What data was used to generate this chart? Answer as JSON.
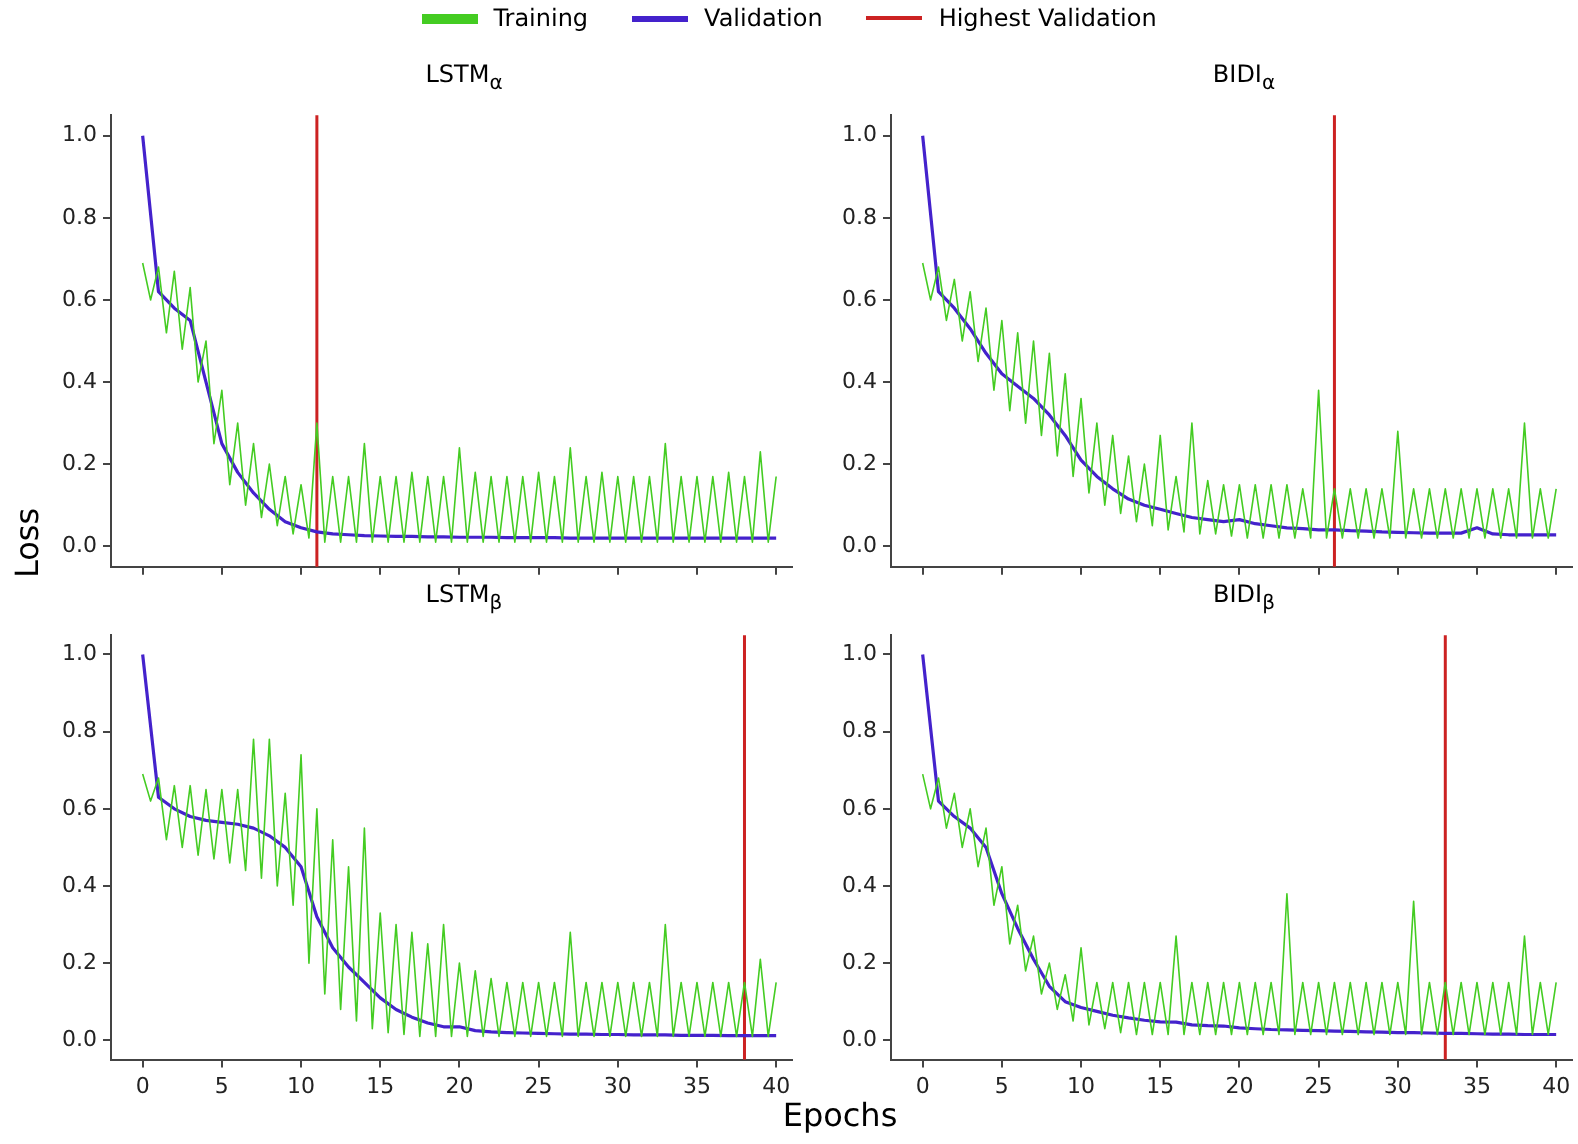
{
  "chart_data": [
    {
      "type": "line",
      "title": "LSTM$_{α}$",
      "ylabel": "Loss",
      "legend": "top",
      "tick_labels": "y",
      "grid": false,
      "marker": "none",
      "line_style": "solid",
      "xlim": [
        -2,
        41
      ],
      "ylim": [
        -0.05,
        1.05
      ],
      "xticks": [
        0,
        5,
        10,
        15,
        20,
        25,
        30,
        35,
        40
      ],
      "yticks": [
        {
          "value": 0,
          "label": "0.0"
        },
        {
          "value": 0.2,
          "label": "0.2"
        },
        {
          "value": 0.4,
          "label": "0.4"
        },
        {
          "value": 0.6,
          "label": "0.6"
        },
        {
          "value": 0.8,
          "label": "0.8"
        },
        {
          "value": 1,
          "label": "1.0"
        }
      ],
      "x": [
        0,
        0.5,
        1,
        1.5,
        2,
        2.5,
        3,
        3.5,
        4,
        4.5,
        5,
        5.5,
        6,
        6.5,
        7,
        7.5,
        8,
        8.5,
        9,
        9.5,
        10,
        10.5,
        11,
        11.5,
        12,
        12.5,
        13,
        13.5,
        14,
        14.5,
        15,
        15.5,
        16,
        16.5,
        17,
        17.5,
        18,
        18.5,
        19,
        19.5,
        20,
        20.5,
        21,
        21.5,
        22,
        22.5,
        23,
        23.5,
        24,
        24.5,
        25,
        25.5,
        26,
        26.5,
        27,
        27.5,
        28,
        28.5,
        29,
        29.5,
        30,
        30.5,
        31,
        31.5,
        32,
        32.5,
        33,
        33.5,
        34,
        34.5,
        35,
        35.5,
        36,
        36.5,
        37,
        37.5,
        38,
        38.5,
        39,
        39.5,
        40
      ],
      "series": [
        {
          "name": "Training",
          "color": "#44cc22",
          "values": [
            0.69,
            0.6,
            0.68,
            0.52,
            0.67,
            0.48,
            0.63,
            0.4,
            0.5,
            0.25,
            0.38,
            0.15,
            0.3,
            0.1,
            0.25,
            0.07,
            0.2,
            0.05,
            0.17,
            0.03,
            0.15,
            0.02,
            0.3,
            0.01,
            0.17,
            0.01,
            0.17,
            0.01,
            0.25,
            0.01,
            0.17,
            0.01,
            0.17,
            0.01,
            0.18,
            0.01,
            0.17,
            0.01,
            0.17,
            0.01,
            0.24,
            0.01,
            0.18,
            0.01,
            0.17,
            0.01,
            0.17,
            0.01,
            0.17,
            0.01,
            0.18,
            0.01,
            0.17,
            0.01,
            0.24,
            0.01,
            0.17,
            0.01,
            0.18,
            0.01,
            0.17,
            0.01,
            0.17,
            0.01,
            0.17,
            0.01,
            0.25,
            0.01,
            0.17,
            0.01,
            0.17,
            0.01,
            0.17,
            0.01,
            0.18,
            0.01,
            0.17,
            0.01,
            0.23,
            0.01,
            0.17
          ]
        },
        {
          "name": "Validation",
          "color": "#4422cc",
          "x": [
            0,
            1,
            2,
            3,
            4,
            5,
            6,
            7,
            8,
            9,
            10,
            11,
            12,
            13,
            14,
            15,
            16,
            17,
            18,
            19,
            20,
            21,
            22,
            23,
            24,
            25,
            26,
            27,
            28,
            29,
            30,
            31,
            32,
            33,
            34,
            35,
            36,
            37,
            38,
            39,
            40
          ],
          "values": [
            1.0,
            0.62,
            0.58,
            0.55,
            0.4,
            0.25,
            0.18,
            0.13,
            0.09,
            0.06,
            0.045,
            0.035,
            0.03,
            0.028,
            0.026,
            0.025,
            0.024,
            0.024,
            0.023,
            0.023,
            0.022,
            0.022,
            0.022,
            0.021,
            0.021,
            0.021,
            0.021,
            0.02,
            0.02,
            0.02,
            0.02,
            0.02,
            0.02,
            0.02,
            0.02,
            0.02,
            0.02,
            0.02,
            0.02,
            0.02,
            0.02
          ]
        }
      ],
      "ref_lines": [
        {
          "axis": "x",
          "value": 11,
          "label": "Highest Validation",
          "color": "#cc2222"
        }
      ]
    },
    {
      "type": "line",
      "title": "BIDI$_{α}$",
      "tick_labels": "y",
      "grid": false,
      "marker": "none",
      "line_style": "solid",
      "xlim": [
        -2,
        41
      ],
      "ylim": [
        -0.05,
        1.05
      ],
      "xticks": [
        0,
        5,
        10,
        15,
        20,
        25,
        30,
        35,
        40
      ],
      "yticks": [
        {
          "value": 0,
          "label": "0.0"
        },
        {
          "value": 0.2,
          "label": "0.2"
        },
        {
          "value": 0.4,
          "label": "0.4"
        },
        {
          "value": 0.6,
          "label": "0.6"
        },
        {
          "value": 0.8,
          "label": "0.8"
        },
        {
          "value": 1,
          "label": "1.0"
        }
      ],
      "x": [
        0,
        0.5,
        1,
        1.5,
        2,
        2.5,
        3,
        3.5,
        4,
        4.5,
        5,
        5.5,
        6,
        6.5,
        7,
        7.5,
        8,
        8.5,
        9,
        9.5,
        10,
        10.5,
        11,
        11.5,
        12,
        12.5,
        13,
        13.5,
        14,
        14.5,
        15,
        15.5,
        16,
        16.5,
        17,
        17.5,
        18,
        18.5,
        19,
        19.5,
        20,
        20.5,
        21,
        21.5,
        22,
        22.5,
        23,
        23.5,
        24,
        24.5,
        25,
        25.5,
        26,
        26.5,
        27,
        27.5,
        28,
        28.5,
        29,
        29.5,
        30,
        30.5,
        31,
        31.5,
        32,
        32.5,
        33,
        33.5,
        34,
        34.5,
        35,
        35.5,
        36,
        36.5,
        37,
        37.5,
        38,
        38.5,
        39,
        39.5,
        40
      ],
      "series": [
        {
          "color": "#44cc22",
          "values": [
            0.69,
            0.6,
            0.68,
            0.55,
            0.65,
            0.5,
            0.62,
            0.45,
            0.58,
            0.38,
            0.55,
            0.33,
            0.52,
            0.3,
            0.5,
            0.27,
            0.47,
            0.22,
            0.42,
            0.17,
            0.36,
            0.13,
            0.3,
            0.1,
            0.27,
            0.08,
            0.22,
            0.06,
            0.2,
            0.05,
            0.27,
            0.04,
            0.17,
            0.035,
            0.3,
            0.03,
            0.16,
            0.03,
            0.15,
            0.025,
            0.15,
            0.02,
            0.15,
            0.02,
            0.15,
            0.02,
            0.15,
            0.02,
            0.14,
            0.02,
            0.38,
            0.02,
            0.14,
            0.02,
            0.14,
            0.02,
            0.14,
            0.02,
            0.14,
            0.02,
            0.28,
            0.02,
            0.14,
            0.02,
            0.14,
            0.02,
            0.14,
            0.02,
            0.14,
            0.02,
            0.14,
            0.02,
            0.14,
            0.02,
            0.14,
            0.02,
            0.3,
            0.02,
            0.14,
            0.02,
            0.14
          ]
        },
        {
          "color": "#4422cc",
          "x": [
            0,
            1,
            2,
            3,
            4,
            5,
            6,
            7,
            8,
            9,
            10,
            11,
            12,
            13,
            14,
            15,
            16,
            17,
            18,
            19,
            20,
            21,
            22,
            23,
            24,
            25,
            26,
            27,
            28,
            29,
            30,
            31,
            32,
            33,
            34,
            35,
            36,
            37,
            38,
            39,
            40
          ],
          "values": [
            1.0,
            0.62,
            0.58,
            0.53,
            0.47,
            0.42,
            0.39,
            0.36,
            0.32,
            0.27,
            0.21,
            0.17,
            0.14,
            0.115,
            0.1,
            0.09,
            0.08,
            0.07,
            0.065,
            0.06,
            0.065,
            0.055,
            0.05,
            0.045,
            0.043,
            0.04,
            0.04,
            0.038,
            0.037,
            0.035,
            0.034,
            0.033,
            0.032,
            0.032,
            0.032,
            0.045,
            0.03,
            0.028,
            0.028,
            0.028,
            0.028
          ]
        }
      ],
      "ref_lines": [
        {
          "axis": "x",
          "value": 26,
          "color": "#cc2222"
        }
      ]
    },
    {
      "type": "line",
      "title": "LSTM$_{β}$",
      "tick_labels": true,
      "grid": false,
      "marker": "none",
      "line_style": "solid",
      "xlim": [
        -2,
        41
      ],
      "ylim": [
        -0.05,
        1.05
      ],
      "xticks": [
        0,
        5,
        10,
        15,
        20,
        25,
        30,
        35,
        40
      ],
      "yticks": [
        {
          "value": 0,
          "label": "0.0"
        },
        {
          "value": 0.2,
          "label": "0.2"
        },
        {
          "value": 0.4,
          "label": "0.4"
        },
        {
          "value": 0.6,
          "label": "0.6"
        },
        {
          "value": 0.8,
          "label": "0.8"
        },
        {
          "value": 1,
          "label": "1.0"
        }
      ],
      "x": [
        0,
        0.5,
        1,
        1.5,
        2,
        2.5,
        3,
        3.5,
        4,
        4.5,
        5,
        5.5,
        6,
        6.5,
        7,
        7.5,
        8,
        8.5,
        9,
        9.5,
        10,
        10.5,
        11,
        11.5,
        12,
        12.5,
        13,
        13.5,
        14,
        14.5,
        15,
        15.5,
        16,
        16.5,
        17,
        17.5,
        18,
        18.5,
        19,
        19.5,
        20,
        20.5,
        21,
        21.5,
        22,
        22.5,
        23,
        23.5,
        24,
        24.5,
        25,
        25.5,
        26,
        26.5,
        27,
        27.5,
        28,
        28.5,
        29,
        29.5,
        30,
        30.5,
        31,
        31.5,
        32,
        32.5,
        33,
        33.5,
        34,
        34.5,
        35,
        35.5,
        36,
        36.5,
        37,
        37.5,
        38,
        38.5,
        39,
        39.5,
        40
      ],
      "series": [
        {
          "color": "#44cc22",
          "values": [
            0.69,
            0.62,
            0.68,
            0.52,
            0.66,
            0.5,
            0.66,
            0.48,
            0.65,
            0.47,
            0.65,
            0.46,
            0.65,
            0.44,
            0.78,
            0.42,
            0.78,
            0.4,
            0.64,
            0.35,
            0.74,
            0.2,
            0.6,
            0.12,
            0.52,
            0.08,
            0.45,
            0.05,
            0.55,
            0.03,
            0.33,
            0.02,
            0.3,
            0.015,
            0.28,
            0.01,
            0.25,
            0.01,
            0.3,
            0.01,
            0.2,
            0.01,
            0.18,
            0.01,
            0.16,
            0.01,
            0.15,
            0.01,
            0.15,
            0.01,
            0.15,
            0.01,
            0.15,
            0.01,
            0.28,
            0.01,
            0.15,
            0.01,
            0.15,
            0.01,
            0.15,
            0.01,
            0.15,
            0.01,
            0.15,
            0.01,
            0.3,
            0.01,
            0.15,
            0.01,
            0.15,
            0.01,
            0.15,
            0.01,
            0.15,
            0.01,
            0.15,
            0.01,
            0.21,
            0.01,
            0.15
          ]
        },
        {
          "color": "#4422cc",
          "x": [
            0,
            1,
            2,
            3,
            4,
            5,
            6,
            7,
            8,
            9,
            10,
            11,
            12,
            13,
            14,
            15,
            16,
            17,
            18,
            19,
            20,
            21,
            22,
            23,
            24,
            25,
            26,
            27,
            28,
            29,
            30,
            31,
            32,
            33,
            34,
            35,
            36,
            37,
            38,
            39,
            40
          ],
          "values": [
            1.0,
            0.63,
            0.6,
            0.58,
            0.57,
            0.565,
            0.56,
            0.55,
            0.53,
            0.5,
            0.45,
            0.32,
            0.24,
            0.19,
            0.15,
            0.11,
            0.08,
            0.06,
            0.045,
            0.035,
            0.035,
            0.025,
            0.022,
            0.02,
            0.019,
            0.018,
            0.017,
            0.016,
            0.016,
            0.015,
            0.015,
            0.014,
            0.014,
            0.014,
            0.013,
            0.013,
            0.013,
            0.012,
            0.012,
            0.012,
            0.012
          ]
        }
      ],
      "ref_lines": [
        {
          "axis": "x",
          "value": 38,
          "color": "#cc2222"
        }
      ]
    },
    {
      "type": "line",
      "title": "BIDI$_{β}$",
      "xlabel": "Epochs",
      "tick_labels": true,
      "grid": false,
      "marker": "none",
      "line_style": "solid",
      "xlim": [
        -2,
        41
      ],
      "ylim": [
        -0.05,
        1.05
      ],
      "xticks": [
        0,
        5,
        10,
        15,
        20,
        25,
        30,
        35,
        40
      ],
      "yticks": [
        {
          "value": 0,
          "label": "0.0"
        },
        {
          "value": 0.2,
          "label": "0.2"
        },
        {
          "value": 0.4,
          "label": "0.4"
        },
        {
          "value": 0.6,
          "label": "0.6"
        },
        {
          "value": 0.8,
          "label": "0.8"
        },
        {
          "value": 1,
          "label": "1.0"
        }
      ],
      "x": [
        0,
        0.5,
        1,
        1.5,
        2,
        2.5,
        3,
        3.5,
        4,
        4.5,
        5,
        5.5,
        6,
        6.5,
        7,
        7.5,
        8,
        8.5,
        9,
        9.5,
        10,
        10.5,
        11,
        11.5,
        12,
        12.5,
        13,
        13.5,
        14,
        14.5,
        15,
        15.5,
        16,
        16.5,
        17,
        17.5,
        18,
        18.5,
        19,
        19.5,
        20,
        20.5,
        21,
        21.5,
        22,
        22.5,
        23,
        23.5,
        24,
        24.5,
        25,
        25.5,
        26,
        26.5,
        27,
        27.5,
        28,
        28.5,
        29,
        29.5,
        30,
        30.5,
        31,
        31.5,
        32,
        32.5,
        33,
        33.5,
        34,
        34.5,
        35,
        35.5,
        36,
        36.5,
        37,
        37.5,
        38,
        38.5,
        39,
        39.5,
        40
      ],
      "series": [
        {
          "color": "#44cc22",
          "values": [
            0.69,
            0.6,
            0.68,
            0.55,
            0.64,
            0.5,
            0.6,
            0.45,
            0.55,
            0.35,
            0.45,
            0.25,
            0.35,
            0.18,
            0.27,
            0.12,
            0.2,
            0.08,
            0.17,
            0.05,
            0.24,
            0.04,
            0.15,
            0.03,
            0.15,
            0.02,
            0.15,
            0.015,
            0.15,
            0.015,
            0.15,
            0.015,
            0.27,
            0.015,
            0.15,
            0.015,
            0.15,
            0.015,
            0.15,
            0.015,
            0.15,
            0.015,
            0.15,
            0.015,
            0.15,
            0.015,
            0.38,
            0.015,
            0.15,
            0.015,
            0.15,
            0.015,
            0.15,
            0.015,
            0.15,
            0.015,
            0.15,
            0.015,
            0.15,
            0.015,
            0.15,
            0.015,
            0.36,
            0.015,
            0.15,
            0.015,
            0.15,
            0.015,
            0.15,
            0.015,
            0.15,
            0.015,
            0.15,
            0.015,
            0.15,
            0.015,
            0.27,
            0.015,
            0.15,
            0.015,
            0.15
          ]
        },
        {
          "color": "#4422cc",
          "x": [
            0,
            1,
            2,
            3,
            4,
            5,
            6,
            7,
            8,
            9,
            10,
            11,
            12,
            13,
            14,
            15,
            16,
            17,
            18,
            19,
            20,
            21,
            22,
            23,
            24,
            25,
            26,
            27,
            28,
            29,
            30,
            31,
            32,
            33,
            34,
            35,
            36,
            37,
            38,
            39,
            40
          ],
          "values": [
            1.0,
            0.62,
            0.58,
            0.55,
            0.5,
            0.38,
            0.29,
            0.21,
            0.14,
            0.1,
            0.085,
            0.075,
            0.065,
            0.058,
            0.052,
            0.048,
            0.047,
            0.04,
            0.038,
            0.037,
            0.032,
            0.03,
            0.028,
            0.027,
            0.026,
            0.025,
            0.024,
            0.023,
            0.022,
            0.021,
            0.02,
            0.02,
            0.019,
            0.018,
            0.018,
            0.017,
            0.016,
            0.016,
            0.015,
            0.015,
            0.015
          ]
        }
      ],
      "ref_lines": [
        {
          "axis": "x",
          "value": 33,
          "color": "#cc2222"
        }
      ]
    }
  ]
}
